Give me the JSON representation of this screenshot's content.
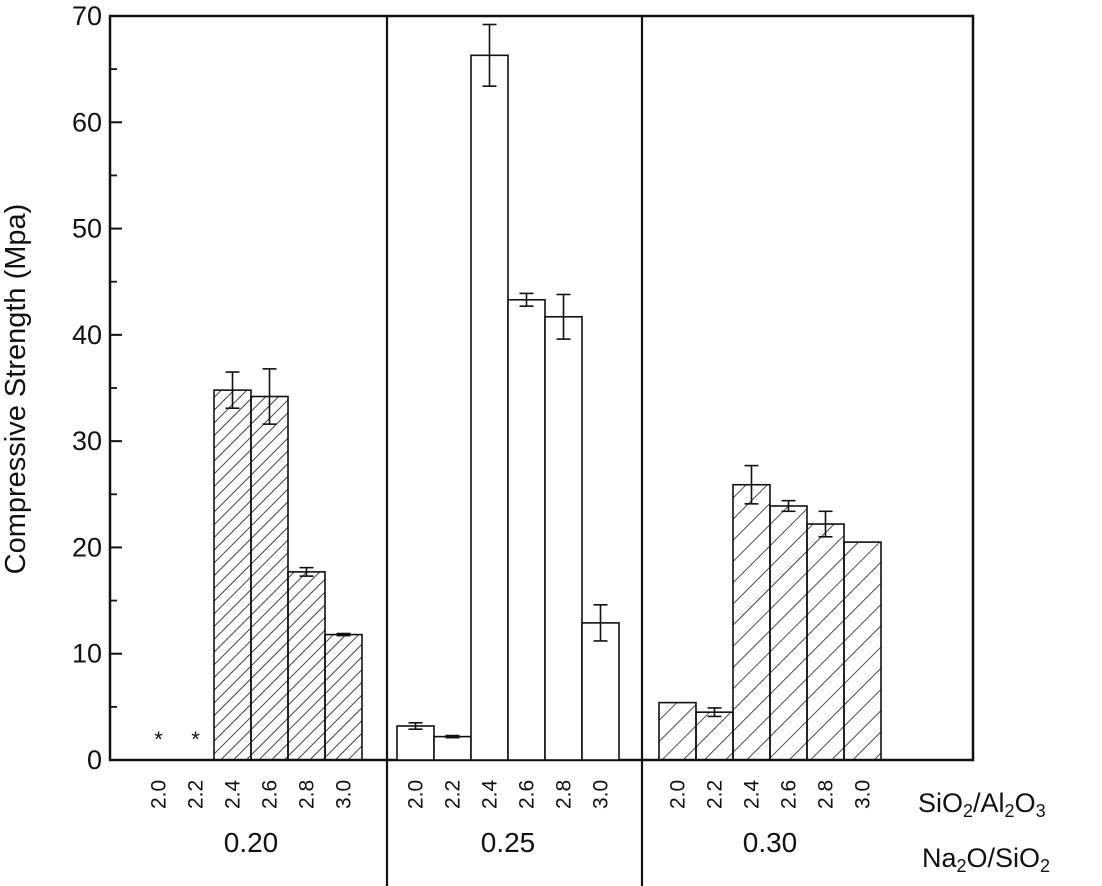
{
  "chart_data": {
    "type": "bar",
    "ylabel": "Compressive Strength (Mpa)",
    "ylim": [
      0,
      70
    ],
    "yticks": [
      0,
      10,
      20,
      30,
      40,
      50,
      60,
      70
    ],
    "x_axis_label_1": {
      "parts": [
        [
          "SiO",
          false
        ],
        [
          "2",
          true
        ],
        [
          "/Al",
          false
        ],
        [
          "2",
          true
        ],
        [
          "O",
          false
        ],
        [
          "3",
          true
        ]
      ]
    },
    "x_axis_label_2": {
      "parts": [
        [
          "Na",
          false
        ],
        [
          "2",
          true
        ],
        [
          "O/SiO",
          false
        ],
        [
          "2",
          true
        ]
      ]
    },
    "categories": [
      "2.0",
      "2.2",
      "2.4",
      "2.6",
      "2.8",
      "3.0"
    ],
    "groups": [
      {
        "name": "0.20",
        "pattern": "dense-hatch",
        "values": [
          null,
          null,
          34.8,
          34.2,
          17.7,
          11.8
        ],
        "errors": [
          null,
          null,
          1.7,
          2.6,
          0.4,
          0.1
        ],
        "markers": [
          "*",
          "*",
          "",
          "",
          "",
          ""
        ]
      },
      {
        "name": "0.25",
        "pattern": "none",
        "values": [
          3.2,
          2.2,
          66.3,
          43.3,
          41.7,
          12.9
        ],
        "errors": [
          0.3,
          0.1,
          2.9,
          0.6,
          2.1,
          1.7
        ],
        "markers": [
          "",
          "",
          "",
          "",
          "",
          ""
        ]
      },
      {
        "name": "0.30",
        "pattern": "sparse-hatch",
        "values": [
          5.4,
          4.5,
          25.9,
          23.9,
          22.2,
          20.5
        ],
        "errors": [
          null,
          0.4,
          1.8,
          0.5,
          1.2,
          null
        ],
        "markers": [
          "",
          "",
          "",
          "",
          "",
          ""
        ]
      }
    ],
    "grid": false,
    "legend": "none"
  }
}
